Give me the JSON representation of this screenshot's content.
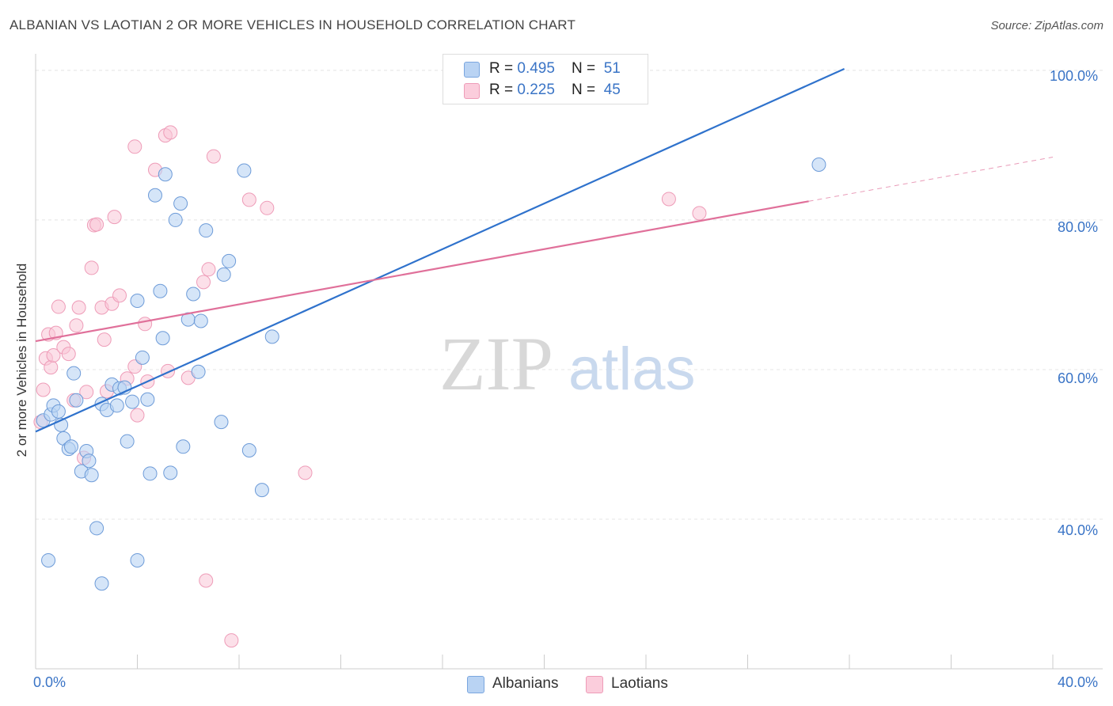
{
  "title": "ALBANIAN VS LAOTIAN 2 OR MORE VEHICLES IN HOUSEHOLD CORRELATION CHART",
  "source": "Source: ZipAtlas.com",
  "watermark": {
    "zip": "ZIP",
    "atlas": "atlas"
  },
  "legend": {
    "rows": [
      {
        "r_label": "R = ",
        "r_value": "0.495",
        "n_label": "N = ",
        "n_value": "51",
        "color": "#a8c8f0"
      },
      {
        "r_label": "R = ",
        "r_value": "0.225",
        "n_label": "N = ",
        "n_value": "45",
        "color": "#f7bcd0"
      }
    ]
  },
  "bottom_legend": {
    "albanians": "Albanians",
    "laotians": "Laotians"
  },
  "axis_labels": {
    "x_min": "0.0%",
    "x_max": "40.0%",
    "y_100": "100.0%",
    "y_80": "80.0%",
    "y_60": "60.0%",
    "y_40": "40.0%"
  },
  "chart_data": {
    "type": "scatter",
    "title": "ALBANIAN VS LAOTIAN 2 OR MORE VEHICLES IN HOUSEHOLD CORRELATION CHART",
    "xlabel": "",
    "ylabel": "2 or more Vehicles in Household",
    "xlim": [
      0,
      40
    ],
    "ylim": [
      20,
      102
    ],
    "y_ticks": [
      40,
      60,
      80,
      100
    ],
    "x_ticks": [
      0,
      40
    ],
    "grid": true,
    "legend_position": "top-center",
    "colors": {
      "albanians": "#3a74c6",
      "laotians": "#e0709a"
    },
    "series": [
      {
        "name": "Albanians",
        "color": "#a8c8f0",
        "trend_color": "#2f72cc",
        "trend": {
          "x": [
            0.0,
            31.8
          ],
          "y": [
            51.7,
            100.2
          ]
        },
        "points": [
          [
            0.3,
            53.2
          ],
          [
            0.5,
            34.5
          ],
          [
            0.6,
            54.0
          ],
          [
            0.7,
            55.2
          ],
          [
            0.9,
            54.4
          ],
          [
            1.0,
            52.6
          ],
          [
            1.1,
            50.8
          ],
          [
            1.3,
            49.4
          ],
          [
            1.5,
            59.5
          ],
          [
            1.6,
            55.9
          ],
          [
            1.8,
            46.4
          ],
          [
            2.0,
            49.1
          ],
          [
            2.1,
            47.8
          ],
          [
            2.2,
            45.9
          ],
          [
            2.4,
            38.8
          ],
          [
            2.6,
            31.4
          ],
          [
            2.6,
            55.4
          ],
          [
            2.8,
            54.6
          ],
          [
            3.0,
            58.0
          ],
          [
            3.2,
            55.2
          ],
          [
            3.3,
            57.5
          ],
          [
            3.5,
            57.6
          ],
          [
            3.6,
            50.4
          ],
          [
            3.8,
            55.7
          ],
          [
            4.0,
            34.5
          ],
          [
            4.0,
            69.2
          ],
          [
            4.2,
            61.6
          ],
          [
            4.4,
            56.0
          ],
          [
            4.5,
            46.1
          ],
          [
            4.7,
            83.3
          ],
          [
            4.9,
            70.5
          ],
          [
            5.0,
            64.2
          ],
          [
            5.1,
            86.1
          ],
          [
            5.3,
            46.2
          ],
          [
            5.5,
            80.0
          ],
          [
            5.7,
            82.2
          ],
          [
            5.8,
            49.7
          ],
          [
            6.0,
            66.7
          ],
          [
            6.2,
            70.1
          ],
          [
            6.4,
            59.7
          ],
          [
            6.5,
            66.5
          ],
          [
            6.7,
            78.6
          ],
          [
            7.3,
            53.0
          ],
          [
            7.4,
            72.7
          ],
          [
            7.6,
            74.5
          ],
          [
            8.2,
            86.6
          ],
          [
            8.4,
            49.2
          ],
          [
            8.9,
            43.9
          ],
          [
            9.3,
            64.4
          ],
          [
            30.8,
            87.4
          ],
          [
            1.4,
            49.7
          ]
        ]
      },
      {
        "name": "Laotians",
        "color": "#f7bcd0",
        "trend_color": "#e0709a",
        "trend": {
          "x": [
            0.0,
            30.4
          ],
          "y": [
            63.8,
            82.5
          ]
        },
        "trend_dashed": {
          "x": [
            30.4,
            40.0
          ],
          "y": [
            82.5,
            88.4
          ]
        },
        "points": [
          [
            0.2,
            53.0
          ],
          [
            0.3,
            57.3
          ],
          [
            0.4,
            61.5
          ],
          [
            0.5,
            64.7
          ],
          [
            0.6,
            60.3
          ],
          [
            0.7,
            61.9
          ],
          [
            0.8,
            64.9
          ],
          [
            0.9,
            68.4
          ],
          [
            1.1,
            63.0
          ],
          [
            1.3,
            62.1
          ],
          [
            1.5,
            55.9
          ],
          [
            1.6,
            65.9
          ],
          [
            1.7,
            68.3
          ],
          [
            1.9,
            48.2
          ],
          [
            2.0,
            57.0
          ],
          [
            2.2,
            73.6
          ],
          [
            2.3,
            79.3
          ],
          [
            2.4,
            79.4
          ],
          [
            2.6,
            68.3
          ],
          [
            2.7,
            64.0
          ],
          [
            2.8,
            57.1
          ],
          [
            3.0,
            68.8
          ],
          [
            3.1,
            80.4
          ],
          [
            3.3,
            69.9
          ],
          [
            3.6,
            58.8
          ],
          [
            3.9,
            89.8
          ],
          [
            3.9,
            60.4
          ],
          [
            4.0,
            53.9
          ],
          [
            4.3,
            66.1
          ],
          [
            4.4,
            58.4
          ],
          [
            4.7,
            86.7
          ],
          [
            5.1,
            91.3
          ],
          [
            5.2,
            59.8
          ],
          [
            5.3,
            91.7
          ],
          [
            6.0,
            58.9
          ],
          [
            6.6,
            71.7
          ],
          [
            6.7,
            31.8
          ],
          [
            6.8,
            73.4
          ],
          [
            7.0,
            88.5
          ],
          [
            7.7,
            23.8
          ],
          [
            8.4,
            82.7
          ],
          [
            9.1,
            81.6
          ],
          [
            10.6,
            46.2
          ],
          [
            24.9,
            82.8
          ],
          [
            26.1,
            80.9
          ]
        ]
      }
    ]
  }
}
